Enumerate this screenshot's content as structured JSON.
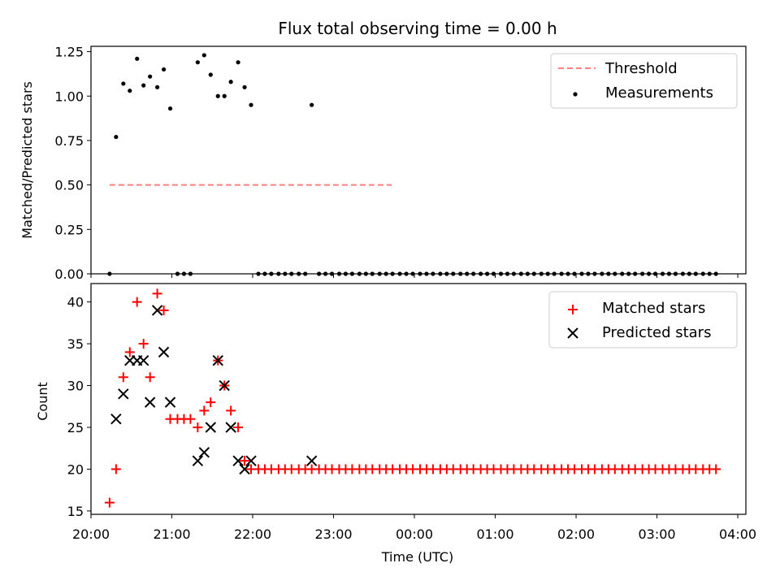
{
  "chart_data": [
    {
      "type": "scatter",
      "title": "Flux total observing time = 0.00 h",
      "xlabel": "",
      "ylabel": "Matched/Predicted stars",
      "xlim": [
        20.0,
        28.1
      ],
      "ylim": [
        0.0,
        1.28
      ],
      "y_ticks": [
        "0.00",
        "0.25",
        "0.50",
        "0.75",
        "1.00",
        "1.25"
      ],
      "grid": false,
      "legend_position": "top-right",
      "series": [
        {
          "name": "Threshold",
          "kind": "dashed-line",
          "color": "#ff8080",
          "x": [
            20.23,
            23.72
          ],
          "y": [
            0.5,
            0.5
          ]
        },
        {
          "name": "Measurements",
          "kind": "scatter-dot",
          "color": "#000000",
          "x": [
            20.23,
            20.31,
            20.4,
            20.48,
            20.57,
            20.65,
            20.73,
            20.82,
            20.9,
            20.98,
            21.07,
            21.15,
            21.23,
            21.32,
            21.4,
            21.48,
            21.57,
            21.65,
            21.73,
            21.82,
            21.9,
            21.98,
            22.07,
            22.15,
            22.23,
            22.32,
            22.4,
            22.48,
            22.57,
            22.65,
            22.73,
            22.82,
            22.9,
            22.98,
            23.07,
            23.15,
            23.23,
            23.32,
            23.4,
            23.48,
            23.57,
            23.65,
            23.73,
            23.82,
            23.9,
            23.98,
            24.07,
            24.15,
            24.23,
            24.32,
            24.4,
            24.48,
            24.57,
            24.65,
            24.73,
            24.82,
            24.9,
            24.98,
            25.07,
            25.15,
            25.23,
            25.32,
            25.4,
            25.48,
            25.57,
            25.65,
            25.73,
            25.82,
            25.9,
            25.98,
            26.07,
            26.15,
            26.23,
            26.32,
            26.4,
            26.48,
            26.57,
            26.65,
            26.73,
            26.82,
            26.9,
            26.98,
            27.07,
            27.15,
            27.23,
            27.32,
            27.4,
            27.48,
            27.57,
            27.65,
            27.73
          ],
          "y": [
            0,
            0.77,
            1.07,
            1.03,
            1.21,
            1.06,
            1.11,
            1.05,
            1.15,
            0.93,
            0,
            0,
            0,
            1.19,
            1.23,
            1.12,
            1.0,
            1.0,
            1.08,
            1.19,
            1.05,
            0.95,
            0,
            0,
            0,
            0,
            0,
            0,
            0,
            0,
            0.95,
            0,
            0,
            0,
            0,
            0,
            0,
            0,
            0,
            0,
            0,
            0,
            0,
            0,
            0,
            0,
            0,
            0,
            0,
            0,
            0,
            0,
            0,
            0,
            0,
            0,
            0,
            0,
            0,
            0,
            0,
            0,
            0,
            0,
            0,
            0,
            0,
            0,
            0,
            0,
            0,
            0,
            0,
            0,
            0,
            0,
            0,
            0,
            0,
            0,
            0,
            0,
            0,
            0,
            0,
            0,
            0,
            0,
            0,
            0,
            0
          ]
        }
      ]
    },
    {
      "type": "scatter",
      "title": "",
      "xlabel": "Time (UTC)",
      "ylabel": "Count",
      "xlim": [
        20.0,
        28.1
      ],
      "ylim": [
        14.6,
        42.2
      ],
      "y_ticks": [
        "15",
        "20",
        "25",
        "30",
        "35",
        "40"
      ],
      "x_ticks": [
        "20:00",
        "21:00",
        "22:00",
        "23:00",
        "00:00",
        "01:00",
        "02:00",
        "03:00",
        "04:00"
      ],
      "grid": false,
      "legend_position": "top-right",
      "series": [
        {
          "name": "Matched stars",
          "kind": "plus",
          "color": "#ff0000",
          "x": [
            20.23,
            20.31,
            20.4,
            20.48,
            20.57,
            20.65,
            20.73,
            20.82,
            20.9,
            20.98,
            21.07,
            21.15,
            21.23,
            21.32,
            21.4,
            21.48,
            21.57,
            21.65,
            21.73,
            21.82,
            21.9,
            21.98,
            22.07,
            22.15,
            22.23,
            22.32,
            22.4,
            22.48,
            22.57,
            22.65,
            22.73,
            22.82,
            22.9,
            22.98,
            23.07,
            23.15,
            23.23,
            23.32,
            23.4,
            23.48,
            23.57,
            23.65,
            23.73,
            23.82,
            23.9,
            23.98,
            24.07,
            24.15,
            24.23,
            24.32,
            24.4,
            24.48,
            24.57,
            24.65,
            24.73,
            24.82,
            24.9,
            24.98,
            25.07,
            25.15,
            25.23,
            25.32,
            25.4,
            25.48,
            25.57,
            25.65,
            25.73,
            25.82,
            25.9,
            25.98,
            26.07,
            26.15,
            26.23,
            26.32,
            26.4,
            26.48,
            26.57,
            26.65,
            26.73,
            26.82,
            26.9,
            26.98,
            27.07,
            27.15,
            27.23,
            27.32,
            27.4,
            27.48,
            27.57,
            27.65,
            27.73
          ],
          "y": [
            16,
            20,
            31,
            34,
            40,
            35,
            31,
            41,
            39,
            26,
            26,
            26,
            26,
            25,
            27,
            28,
            33,
            30,
            27,
            25,
            21,
            20,
            20,
            20,
            20,
            20,
            20,
            20,
            20,
            20,
            20,
            20,
            20,
            20,
            20,
            20,
            20,
            20,
            20,
            20,
            20,
            20,
            20,
            20,
            20,
            20,
            20,
            20,
            20,
            20,
            20,
            20,
            20,
            20,
            20,
            20,
            20,
            20,
            20,
            20,
            20,
            20,
            20,
            20,
            20,
            20,
            20,
            20,
            20,
            20,
            20,
            20,
            20,
            20,
            20,
            20,
            20,
            20,
            20,
            20,
            20,
            20,
            20,
            20,
            20,
            20,
            20,
            20,
            20,
            20,
            20
          ]
        },
        {
          "name": "Predicted stars",
          "kind": "x",
          "color": "#000000",
          "x": [
            20.31,
            20.4,
            20.48,
            20.57,
            20.65,
            20.73,
            20.82,
            20.9,
            20.98,
            21.32,
            21.4,
            21.48,
            21.57,
            21.65,
            21.73,
            21.82,
            21.9,
            21.98,
            22.73
          ],
          "y": [
            26,
            29,
            33,
            33,
            33,
            28,
            39,
            34,
            28,
            21,
            22,
            25,
            33,
            30,
            25,
            21,
            20,
            21,
            21
          ]
        }
      ]
    }
  ]
}
